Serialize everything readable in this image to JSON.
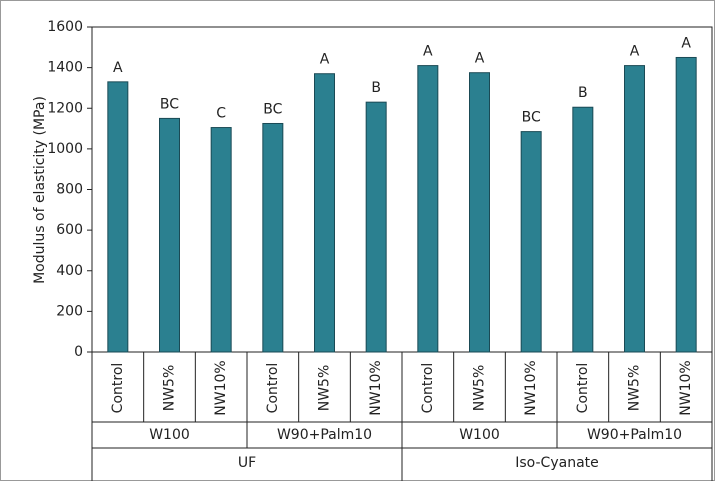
{
  "chart_data": {
    "type": "bar",
    "y_label": "Modulus of elasticity (MPa)",
    "categories": [
      "Control",
      "NW5%",
      "NW10%",
      "Control",
      "NW5%",
      "NW10%",
      "Control",
      "NW5%",
      "NW10%",
      "Control",
      "NW5%",
      "NW10%"
    ],
    "group_labels": [
      "W100",
      "W90+Palm10",
      "W100",
      "W90+Palm10"
    ],
    "supergroup_labels": [
      "UF",
      "Iso-Cyanate"
    ],
    "values": [
      1330,
      1150,
      1105,
      1125,
      1370,
      1230,
      1410,
      1375,
      1085,
      1205,
      1410,
      1450
    ],
    "annotations": [
      "A",
      "BC",
      "C",
      "BC",
      "A",
      "B",
      "A",
      "A",
      "BC",
      "B",
      "A",
      "A"
    ],
    "color": "#2b8090",
    "ylim": [
      0,
      1600
    ],
    "yticks": [
      0,
      200,
      400,
      600,
      800,
      1000,
      1200,
      1400,
      1600
    ]
  }
}
